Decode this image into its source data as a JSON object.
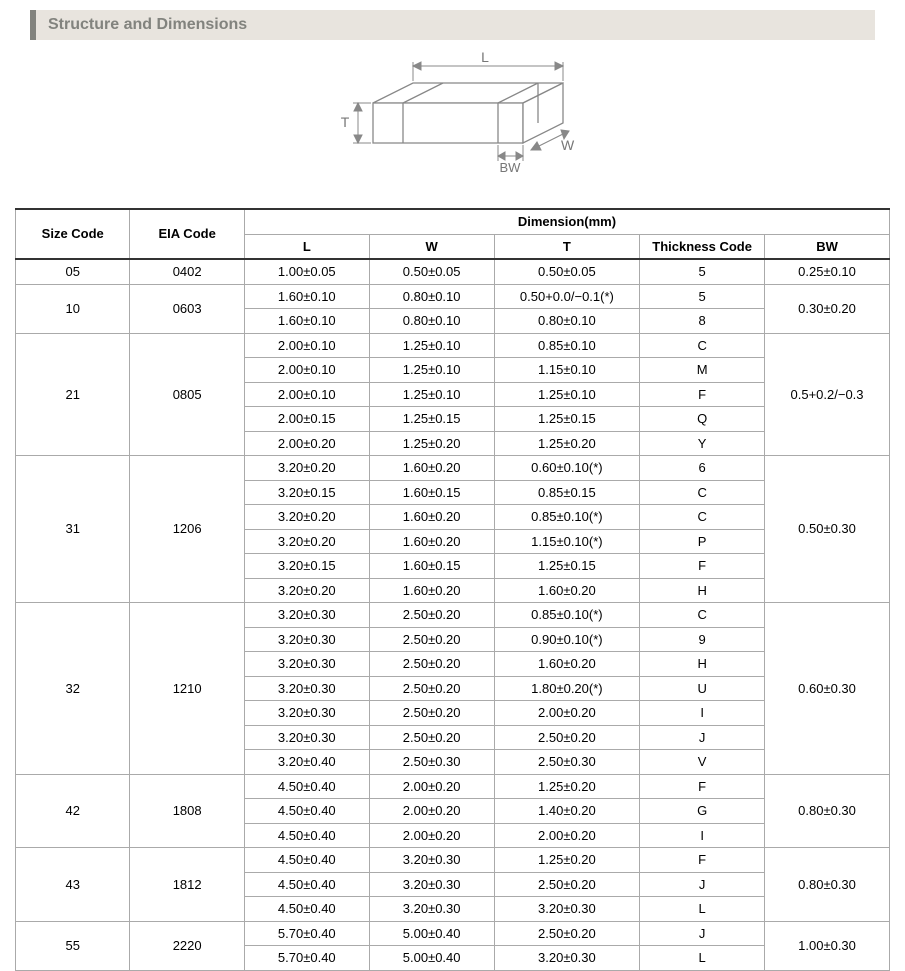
{
  "section_title": "Structure and Dimensions",
  "diagram": {
    "labels": {
      "L": "L",
      "W": "W",
      "T": "T",
      "BW": "BW"
    },
    "stroke": "#888888",
    "fill": "#ffffff",
    "label_color": "#777777",
    "label_fontsize": 14
  },
  "table": {
    "header": {
      "size_code": "Size Code",
      "eia_code": "EIA Code",
      "dimension": "Dimension(mm)",
      "L": "L",
      "W": "W",
      "T": "T",
      "thickness_code": "Thickness Code",
      "BW": "BW"
    },
    "groups": [
      {
        "size_code": "05",
        "eia_code": "0402",
        "bw": "0.25±0.10",
        "rows": [
          {
            "L": "1.00±0.05",
            "W": "0.50±0.05",
            "T": "0.50±0.05",
            "tc": "5"
          }
        ]
      },
      {
        "size_code": "10",
        "eia_code": "0603",
        "bw": "0.30±0.20",
        "rows": [
          {
            "L": "1.60±0.10",
            "W": "0.80±0.10",
            "T": "0.50+0.0/−0.1(*)",
            "tc": "5"
          },
          {
            "L": "1.60±0.10",
            "W": "0.80±0.10",
            "T": "0.80±0.10",
            "tc": "8"
          }
        ]
      },
      {
        "size_code": "21",
        "eia_code": "0805",
        "bw": "0.5+0.2/−0.3",
        "rows": [
          {
            "L": "2.00±0.10",
            "W": "1.25±0.10",
            "T": "0.85±0.10",
            "tc": "C"
          },
          {
            "L": "2.00±0.10",
            "W": "1.25±0.10",
            "T": "1.15±0.10",
            "tc": "M"
          },
          {
            "L": "2.00±0.10",
            "W": "1.25±0.10",
            "T": "1.25±0.10",
            "tc": "F"
          },
          {
            "L": "2.00±0.15",
            "W": "1.25±0.15",
            "T": "1.25±0.15",
            "tc": "Q"
          },
          {
            "L": "2.00±0.20",
            "W": "1.25±0.20",
            "T": "1.25±0.20",
            "tc": "Y"
          }
        ]
      },
      {
        "size_code": "31",
        "eia_code": "1206",
        "bw": "0.50±0.30",
        "rows": [
          {
            "L": "3.20±0.20",
            "W": "1.60±0.20",
            "T": "0.60±0.10(*)",
            "tc": "6"
          },
          {
            "L": "3.20±0.15",
            "W": "1.60±0.15",
            "T": "0.85±0.15",
            "tc": "C"
          },
          {
            "L": "3.20±0.20",
            "W": "1.60±0.20",
            "T": "0.85±0.10(*)",
            "tc": "C"
          },
          {
            "L": "3.20±0.20",
            "W": "1.60±0.20",
            "T": "1.15±0.10(*)",
            "tc": "P"
          },
          {
            "L": "3.20±0.15",
            "W": "1.60±0.15",
            "T": "1.25±0.15",
            "tc": "F"
          },
          {
            "L": "3.20±0.20",
            "W": "1.60±0.20",
            "T": "1.60±0.20",
            "tc": "H"
          }
        ]
      },
      {
        "size_code": "32",
        "eia_code": "1210",
        "bw": "0.60±0.30",
        "rows": [
          {
            "L": "3.20±0.30",
            "W": "2.50±0.20",
            "T": "0.85±0.10(*)",
            "tc": "C"
          },
          {
            "L": "3.20±0.30",
            "W": "2.50±0.20",
            "T": "0.90±0.10(*)",
            "tc": "9"
          },
          {
            "L": "3.20±0.30",
            "W": "2.50±0.20",
            "T": "1.60±0.20",
            "tc": "H"
          },
          {
            "L": "3.20±0.30",
            "W": "2.50±0.20",
            "T": "1.80±0.20(*)",
            "tc": "U"
          },
          {
            "L": "3.20±0.30",
            "W": "2.50±0.20",
            "T": "2.00±0.20",
            "tc": "I"
          },
          {
            "L": "3.20±0.30",
            "W": "2.50±0.20",
            "T": "2.50±0.20",
            "tc": "J"
          },
          {
            "L": "3.20±0.40",
            "W": "2.50±0.30",
            "T": "2.50±0.30",
            "tc": "V"
          }
        ]
      },
      {
        "size_code": "42",
        "eia_code": "1808",
        "bw": "0.80±0.30",
        "rows": [
          {
            "L": "4.50±0.40",
            "W": "2.00±0.20",
            "T": "1.25±0.20",
            "tc": "F"
          },
          {
            "L": "4.50±0.40",
            "W": "2.00±0.20",
            "T": "1.40±0.20",
            "tc": "G"
          },
          {
            "L": "4.50±0.40",
            "W": "2.00±0.20",
            "T": "2.00±0.20",
            "tc": "I"
          }
        ]
      },
      {
        "size_code": "43",
        "eia_code": "1812",
        "bw": "0.80±0.30",
        "rows": [
          {
            "L": "4.50±0.40",
            "W": "3.20±0.30",
            "T": "1.25±0.20",
            "tc": "F"
          },
          {
            "L": "4.50±0.40",
            "W": "3.20±0.30",
            "T": "2.50±0.20",
            "tc": "J"
          },
          {
            "L": "4.50±0.40",
            "W": "3.20±0.30",
            "T": "3.20±0.30",
            "tc": "L"
          }
        ]
      },
      {
        "size_code": "55",
        "eia_code": "2220",
        "bw": "1.00±0.30",
        "rows": [
          {
            "L": "5.70±0.40",
            "W": "5.00±0.40",
            "T": "2.50±0.20",
            "tc": "J"
          },
          {
            "L": "5.70±0.40",
            "W": "5.00±0.40",
            "T": "3.20±0.30",
            "tc": "L"
          }
        ]
      }
    ]
  }
}
